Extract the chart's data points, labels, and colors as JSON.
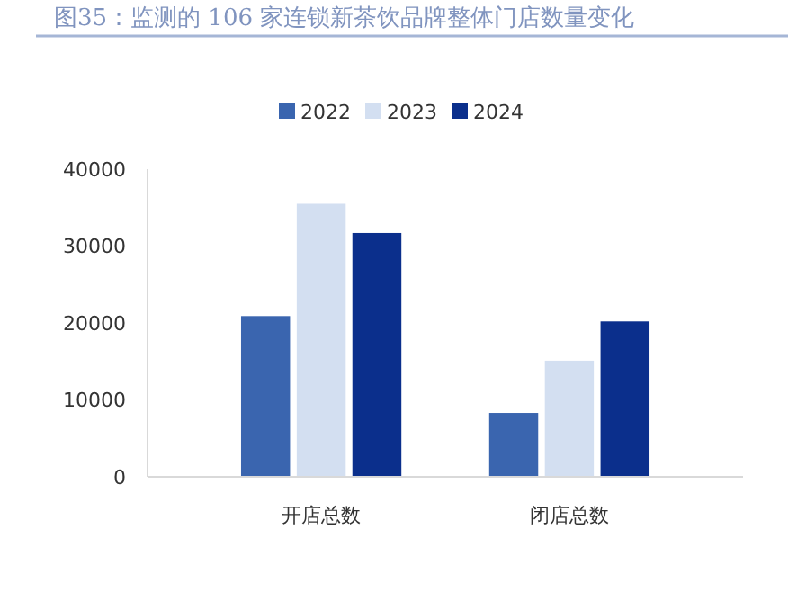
{
  "chart_data": {
    "type": "bar",
    "title": "图35：监测的 106 家连锁新茶饮品牌整体门店数量变化",
    "categories": [
      "开店总数",
      "闭店总数"
    ],
    "series": [
      {
        "name": "2022",
        "color": "#3a65af",
        "values": [
          20900,
          8300
        ]
      },
      {
        "name": "2023",
        "color": "#d3dff1",
        "values": [
          35500,
          15100
        ]
      },
      {
        "name": "2024",
        "color": "#0b2f8c",
        "values": [
          31700,
          20200
        ]
      }
    ],
    "ylim": [
      0,
      40000
    ],
    "yticks": [
      0,
      10000,
      20000,
      30000,
      40000
    ],
    "grid": false,
    "legend": "top"
  }
}
